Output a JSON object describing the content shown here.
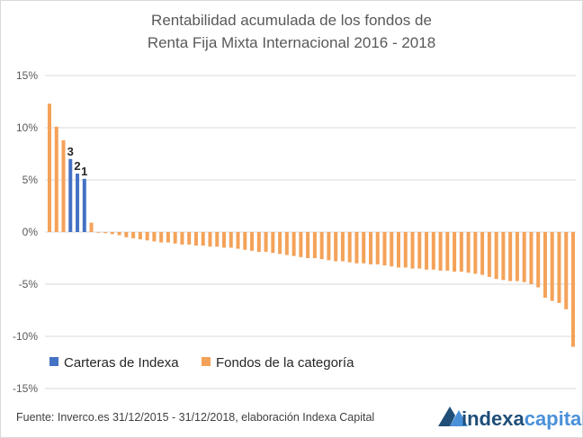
{
  "chart_data": {
    "type": "bar",
    "title_lines": [
      "Rentabilidad acumulada de los fondos de",
      "Renta Fija Mixta Internacional 2016 - 2018"
    ],
    "xlabel": "",
    "ylabel": "",
    "ylim": [
      -15,
      15
    ],
    "yticks": [
      15,
      10,
      5,
      0,
      -5,
      -10,
      -15
    ],
    "ytick_labels": [
      "15%",
      "10%",
      "5%",
      "0%",
      "-5%",
      "-10%",
      "-15%"
    ],
    "grid": true,
    "legend_position": "bottom-left",
    "series": [
      {
        "name": "Carteras de Indexa",
        "color": "#4472C4"
      },
      {
        "name": "Fondos de la categoría",
        "color": "#F4A259"
      }
    ],
    "values": [
      12.3,
      10.1,
      8.8,
      7.0,
      5.6,
      5.1,
      0.9,
      0.0,
      -0.1,
      -0.2,
      -0.3,
      -0.5,
      -0.6,
      -0.7,
      -0.8,
      -0.9,
      -1.0,
      -1.0,
      -1.1,
      -1.2,
      -1.2,
      -1.3,
      -1.3,
      -1.4,
      -1.4,
      -1.5,
      -1.5,
      -1.6,
      -1.7,
      -1.8,
      -1.9,
      -1.9,
      -2.0,
      -2.1,
      -2.2,
      -2.3,
      -2.4,
      -2.5,
      -2.5,
      -2.6,
      -2.7,
      -2.8,
      -2.8,
      -2.9,
      -3.0,
      -3.0,
      -3.1,
      -3.1,
      -3.2,
      -3.3,
      -3.4,
      -3.4,
      -3.5,
      -3.5,
      -3.6,
      -3.6,
      -3.7,
      -3.7,
      -3.8,
      -3.8,
      -3.9,
      -4.0,
      -4.1,
      -4.3,
      -4.5,
      -4.6,
      -4.7,
      -4.7,
      -4.8,
      -5.0,
      -5.3,
      -6.3,
      -6.6,
      -6.8,
      -7.4,
      -11.0
    ],
    "series_index": [
      1,
      1,
      1,
      0,
      0,
      0,
      1,
      1,
      1,
      1,
      1,
      1,
      1,
      1,
      1,
      1,
      1,
      1,
      1,
      1,
      1,
      1,
      1,
      1,
      1,
      1,
      1,
      1,
      1,
      1,
      1,
      1,
      1,
      1,
      1,
      1,
      1,
      1,
      1,
      1,
      1,
      1,
      1,
      1,
      1,
      1,
      1,
      1,
      1,
      1,
      1,
      1,
      1,
      1,
      1,
      1,
      1,
      1,
      1,
      1,
      1,
      1,
      1,
      1,
      1,
      1,
      1,
      1,
      1,
      1,
      1,
      1,
      1,
      1,
      1,
      1
    ],
    "annotations": [
      {
        "text": "3",
        "bar_index": 3
      },
      {
        "text": "2",
        "bar_index": 4
      },
      {
        "text": "1",
        "bar_index": 5
      }
    ]
  },
  "footer": {
    "source": "Fuente: Inverco.es  31/12/2015 - 31/12/2018, elaboración Indexa Capital",
    "logo_primary": "indexa",
    "logo_secondary": "capital"
  },
  "colors": {
    "indexa": "#4472C4",
    "category": "#F4A259",
    "logo_primary": "#1F4E79",
    "logo_secondary": "#4A90D9"
  }
}
